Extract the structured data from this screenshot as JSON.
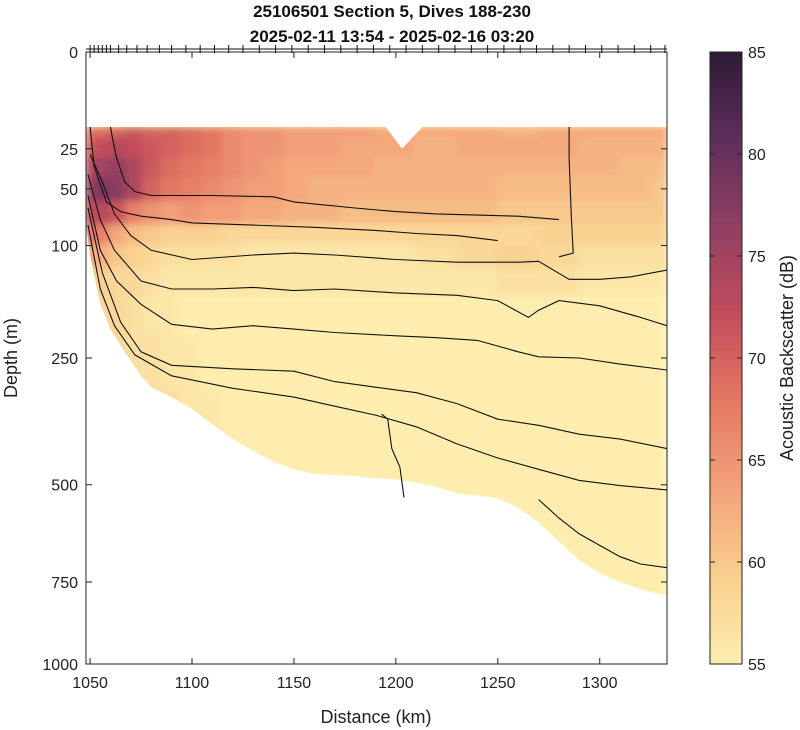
{
  "chart_data": {
    "type": "heatmap",
    "title": "25106501 Section 5, Dives 188-230",
    "subtitle": "2025-02-11 13:54 - 2025-02-16 03:20",
    "xlabel": "Distance (km)",
    "ylabel": "Depth (m)",
    "colorbar_label": "Acoustic Backscatter (dB)",
    "xlim": [
      1048,
      1333
    ],
    "x_ticks": [
      1050,
      1100,
      1150,
      1200,
      1250,
      1300
    ],
    "x_tick_labels": [
      "1050",
      "1100",
      "1150",
      "1200",
      "1250",
      "1300"
    ],
    "y_scale": "sqrt",
    "ylim": [
      0,
      1000
    ],
    "y_ticks": [
      0,
      25,
      50,
      100,
      250,
      500,
      750,
      1000
    ],
    "y_tick_labels": [
      "0",
      "25",
      "50",
      "100",
      "250",
      "500",
      "750",
      "1000"
    ],
    "colorbar": {
      "range": [
        55,
        85
      ],
      "ticks": [
        55,
        60,
        65,
        70,
        75,
        80,
        85
      ],
      "tick_labels": [
        "55",
        "60",
        "65",
        "70",
        "75",
        "80",
        "85"
      ],
      "colormap": [
        "#fdeeb0",
        "#f9cf8f",
        "#f3a27a",
        "#e57862",
        "#c24d5c",
        "#913f62",
        "#5e2e5a",
        "#2e1a35"
      ]
    },
    "dive_markers_km": [
      1050,
      1052,
      1054,
      1056,
      1058,
      1060,
      1064,
      1068,
      1073,
      1078,
      1084,
      1090,
      1097,
      1104,
      1111,
      1118,
      1125,
      1133,
      1141,
      1149,
      1157,
      1165,
      1173,
      1181,
      1189,
      1197,
      1205,
      1213,
      1221,
      1229,
      1237,
      1245,
      1253,
      1261,
      1269,
      1277,
      1285,
      1293,
      1301,
      1309,
      1317,
      1325,
      1332
    ],
    "data_bottom": [
      [
        1048,
        80
      ],
      [
        1050,
        110
      ],
      [
        1055,
        170
      ],
      [
        1060,
        205
      ],
      [
        1065,
        230
      ],
      [
        1070,
        255
      ],
      [
        1075,
        280
      ],
      [
        1080,
        300
      ],
      [
        1090,
        318
      ],
      [
        1100,
        340
      ],
      [
        1110,
        370
      ],
      [
        1120,
        400
      ],
      [
        1130,
        425
      ],
      [
        1140,
        448
      ],
      [
        1150,
        465
      ],
      [
        1160,
        475
      ],
      [
        1170,
        478
      ],
      [
        1180,
        480
      ],
      [
        1190,
        485
      ],
      [
        1200,
        488
      ],
      [
        1210,
        495
      ],
      [
        1220,
        505
      ],
      [
        1230,
        520
      ],
      [
        1240,
        525
      ],
      [
        1250,
        532
      ],
      [
        1260,
        555
      ],
      [
        1270,
        590
      ],
      [
        1280,
        640
      ],
      [
        1290,
        690
      ],
      [
        1300,
        725
      ],
      [
        1310,
        750
      ],
      [
        1320,
        770
      ],
      [
        1333,
        790
      ]
    ],
    "surface_band_top_m": 15,
    "contour_lines": [
      {
        "points": [
          [
            1050,
            28
          ],
          [
            1056,
            45
          ],
          [
            1062,
            70
          ],
          [
            1070,
            90
          ],
          [
            1080,
            105
          ],
          [
            1100,
            115
          ],
          [
            1130,
            110
          ],
          [
            1150,
            108
          ],
          [
            1170,
            110
          ],
          [
            1200,
            115
          ],
          [
            1230,
            118
          ],
          [
            1260,
            118
          ],
          [
            1270,
            117
          ],
          [
            1285,
            138
          ],
          [
            1300,
            138
          ],
          [
            1315,
            135
          ],
          [
            1333,
            127
          ]
        ]
      },
      {
        "points": [
          [
            1049,
            40
          ],
          [
            1055,
            75
          ],
          [
            1062,
            105
          ],
          [
            1075,
            140
          ],
          [
            1090,
            150
          ],
          [
            1110,
            150
          ],
          [
            1130,
            148
          ],
          [
            1150,
            152
          ],
          [
            1170,
            150
          ],
          [
            1200,
            155
          ],
          [
            1230,
            158
          ],
          [
            1250,
            165
          ],
          [
            1265,
            188
          ],
          [
            1270,
            178
          ],
          [
            1280,
            165
          ],
          [
            1300,
            172
          ],
          [
            1320,
            188
          ],
          [
            1333,
            200
          ]
        ]
      },
      {
        "points": [
          [
            1049,
            55
          ],
          [
            1055,
            105
          ],
          [
            1063,
            140
          ],
          [
            1075,
            170
          ],
          [
            1090,
            198
          ],
          [
            1110,
            205
          ],
          [
            1130,
            200
          ],
          [
            1150,
            205
          ],
          [
            1170,
            210
          ],
          [
            1200,
            215
          ],
          [
            1220,
            218
          ],
          [
            1240,
            222
          ],
          [
            1260,
            240
          ],
          [
            1270,
            248
          ],
          [
            1290,
            250
          ],
          [
            1310,
            260
          ],
          [
            1333,
            270
          ]
        ]
      },
      {
        "points": [
          [
            1049,
            65
          ],
          [
            1056,
            130
          ],
          [
            1065,
            195
          ],
          [
            1075,
            240
          ],
          [
            1090,
            262
          ],
          [
            1120,
            268
          ],
          [
            1150,
            272
          ],
          [
            1170,
            290
          ],
          [
            1190,
            300
          ],
          [
            1210,
            310
          ],
          [
            1230,
            330
          ],
          [
            1250,
            360
          ],
          [
            1270,
            372
          ],
          [
            1290,
            390
          ],
          [
            1310,
            400
          ],
          [
            1333,
            420
          ]
        ]
      },
      {
        "points": [
          [
            1049,
            80
          ],
          [
            1055,
            150
          ],
          [
            1062,
            200
          ],
          [
            1072,
            245
          ],
          [
            1090,
            280
          ],
          [
            1120,
            302
          ],
          [
            1150,
            318
          ],
          [
            1170,
            335
          ],
          [
            1190,
            352
          ],
          [
            1210,
            375
          ],
          [
            1230,
            410
          ],
          [
            1250,
            440
          ],
          [
            1270,
            465
          ],
          [
            1290,
            490
          ],
          [
            1310,
            502
          ],
          [
            1333,
            512
          ]
        ]
      },
      {
        "points": [
          [
            1193,
            350
          ],
          [
            1196,
            360
          ],
          [
            1198,
            420
          ],
          [
            1202,
            460
          ],
          [
            1204,
            530
          ]
        ]
      },
      {
        "points": [
          [
            1270,
            535
          ],
          [
            1280,
            580
          ],
          [
            1290,
            620
          ],
          [
            1300,
            650
          ],
          [
            1310,
            680
          ],
          [
            1320,
            700
          ],
          [
            1333,
            710
          ]
        ]
      },
      {
        "points": [
          [
            1285,
            15
          ],
          [
            1285,
            30
          ],
          [
            1286,
            70
          ],
          [
            1287,
            108
          ],
          [
            1280,
            112
          ]
        ]
      },
      {
        "points": [
          [
            1060,
            15
          ],
          [
            1061,
            20
          ],
          [
            1063,
            30
          ],
          [
            1067,
            45
          ],
          [
            1072,
            52
          ],
          [
            1080,
            55
          ],
          [
            1110,
            55
          ],
          [
            1140,
            56
          ],
          [
            1150,
            60
          ],
          [
            1180,
            65
          ],
          [
            1200,
            68
          ],
          [
            1220,
            70
          ],
          [
            1260,
            72
          ],
          [
            1280,
            75
          ]
        ]
      },
      {
        "points": [
          [
            1050,
            15
          ],
          [
            1052,
            35
          ],
          [
            1058,
            60
          ],
          [
            1065,
            68
          ],
          [
            1075,
            72
          ],
          [
            1090,
            75
          ],
          [
            1100,
            78
          ],
          [
            1130,
            80
          ],
          [
            1160,
            82
          ],
          [
            1190,
            85
          ],
          [
            1210,
            88
          ],
          [
            1230,
            90
          ],
          [
            1250,
            95
          ]
        ]
      }
    ],
    "field": {
      "x": [
        1048,
        1056,
        1064,
        1072,
        1080,
        1090,
        1100,
        1110,
        1120,
        1130,
        1140,
        1150,
        1165,
        1180,
        1200,
        1220,
        1240,
        1260,
        1280,
        1300,
        1320,
        1333
      ],
      "depth": [
        15,
        25,
        35,
        50,
        70,
        90,
        110,
        140,
        180,
        250,
        350,
        500,
        650,
        800
      ],
      "values_db": [
        [
          68,
          69,
          70,
          71,
          70,
          70,
          69,
          68,
          66,
          65,
          65,
          64,
          64,
          64,
          63,
          63,
          63,
          62,
          63,
          63,
          63,
          63
        ],
        [
          70,
          72,
          73,
          72,
          71,
          70,
          69,
          68,
          66,
          65,
          65,
          64,
          64,
          63,
          63,
          62,
          63,
          63,
          63,
          62,
          62,
          62
        ],
        [
          73,
          75,
          76,
          74,
          71,
          69,
          68,
          67,
          66,
          65,
          64,
          63,
          63,
          63,
          62,
          62,
          62,
          62,
          62,
          62,
          61,
          61
        ],
        [
          75,
          78,
          77,
          74,
          70,
          68,
          67,
          66,
          65,
          64,
          64,
          63,
          62,
          62,
          62,
          62,
          62,
          61,
          61,
          61,
          61,
          60
        ],
        [
          72,
          73,
          71,
          67,
          65,
          64,
          65,
          64,
          64,
          63,
          63,
          62,
          62,
          61,
          61,
          61,
          61,
          60,
          60,
          60,
          60,
          60
        ],
        [
          68,
          67,
          63,
          61,
          60,
          59,
          59,
          59,
          58,
          58,
          58,
          58,
          58,
          58,
          58,
          58,
          58,
          58,
          59,
          59,
          59,
          59
        ],
        [
          64,
          62,
          60,
          59,
          58,
          57,
          57,
          57,
          57,
          56,
          56,
          56,
          56,
          56,
          56,
          57,
          58,
          59,
          58,
          57,
          57,
          57
        ],
        [
          60,
          59,
          58,
          58,
          57,
          56,
          56,
          56,
          56,
          56,
          56,
          56,
          56,
          56,
          56,
          56,
          56,
          57,
          57,
          56,
          56,
          56
        ],
        [
          58,
          58,
          58,
          57,
          56,
          56,
          55,
          55,
          55,
          55,
          55,
          55,
          55,
          55,
          55,
          55,
          55,
          55,
          55,
          55,
          55,
          55
        ],
        [
          58,
          58,
          58,
          57,
          57,
          56,
          56,
          55,
          55,
          55,
          55,
          55,
          55,
          55,
          55,
          55,
          55,
          55,
          55,
          55,
          55,
          55
        ],
        [
          58,
          58,
          58,
          58,
          57,
          57,
          56,
          56,
          55,
          55,
          55,
          55,
          55,
          55,
          55,
          55,
          55,
          55,
          55,
          55,
          55,
          55
        ],
        [
          58,
          58,
          58,
          58,
          58,
          57,
          57,
          56,
          56,
          55,
          55,
          55,
          55,
          55,
          55,
          55,
          55,
          55,
          55,
          55,
          55,
          55
        ],
        [
          58,
          58,
          58,
          58,
          58,
          58,
          57,
          57,
          56,
          56,
          55,
          55,
          55,
          55,
          55,
          55,
          55,
          55,
          55,
          55,
          55,
          55
        ],
        [
          58,
          58,
          58,
          58,
          58,
          58,
          57,
          57,
          56,
          56,
          55,
          55,
          55,
          55,
          55,
          55,
          55,
          55,
          55,
          55,
          55,
          55
        ]
      ]
    }
  }
}
